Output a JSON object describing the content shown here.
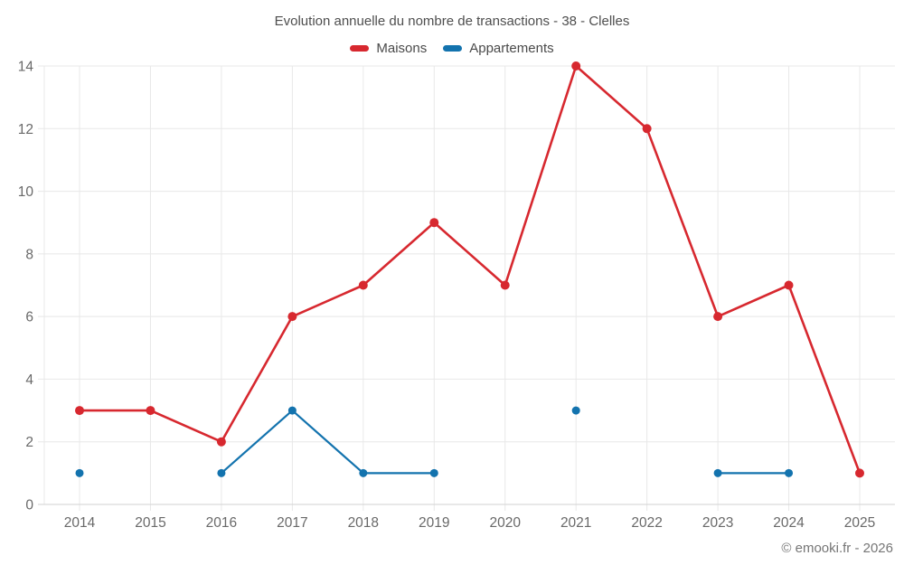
{
  "footer": {
    "copyright": "© emooki.fr - 2026"
  },
  "chart_data": {
    "type": "line",
    "title": "Evolution annuelle du nombre de transactions - 38 - Clelles",
    "categories": [
      "2014",
      "2015",
      "2016",
      "2017",
      "2018",
      "2019",
      "2020",
      "2021",
      "2022",
      "2023",
      "2024",
      "2025"
    ],
    "series": [
      {
        "name": "Maisons",
        "color": "#d7282f",
        "values": [
          3,
          3,
          2,
          6,
          7,
          9,
          7,
          14,
          12,
          6,
          7,
          1
        ]
      },
      {
        "name": "Appartements",
        "color": "#1373ae",
        "values": [
          1,
          null,
          1,
          3,
          1,
          1,
          null,
          3,
          null,
          1,
          1,
          null
        ]
      }
    ],
    "xlabel": "",
    "ylabel": "",
    "ylim": [
      0,
      14
    ],
    "yticks": [
      0,
      2,
      4,
      6,
      8,
      10,
      12,
      14
    ],
    "grid": true,
    "legend_position": "top",
    "colors": {
      "grid": "#e8e8e8",
      "axis_line": "#d2d2d2",
      "tick_label": "#696969"
    }
  }
}
